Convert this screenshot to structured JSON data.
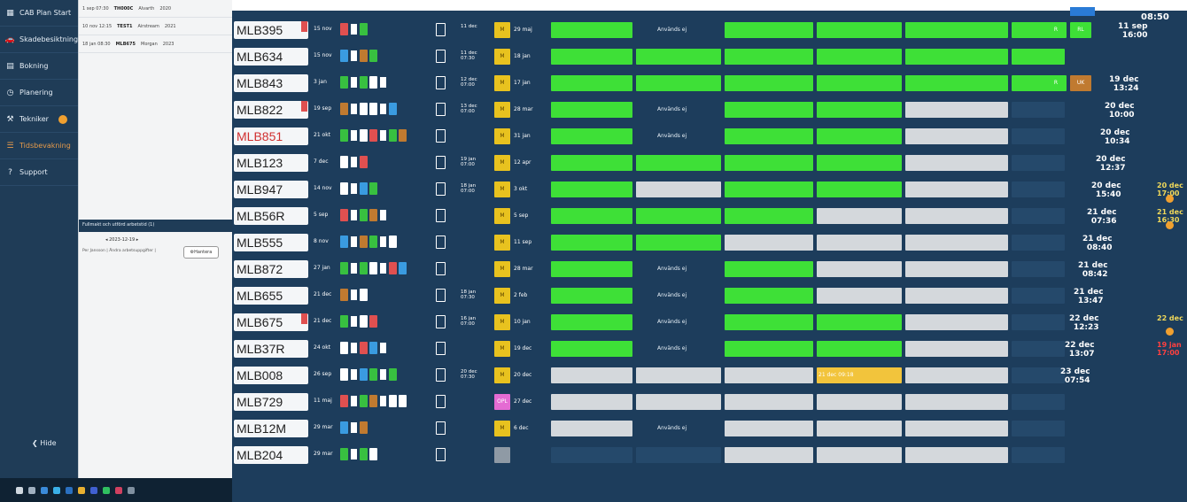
{
  "sidebar": {
    "items": [
      {
        "label": "CAB Plan Start",
        "icon": "grid-icon"
      },
      {
        "label": "Skadebesiktning",
        "icon": "car-icon"
      },
      {
        "label": "Bokning",
        "icon": "booking-icon"
      },
      {
        "label": "Planering",
        "icon": "clock-icon"
      },
      {
        "label": "Tekniker",
        "icon": "wrench-icon"
      },
      {
        "label": "Tidsbevakning",
        "icon": "list-icon"
      },
      {
        "label": "Support",
        "icon": "help-icon"
      }
    ],
    "hide_label": "Hide"
  },
  "middle_panel": {
    "entries": [
      {
        "time": "1 sep 07:30",
        "plate": "TH000C",
        "name": "Alvarth",
        "year": "2020"
      },
      {
        "time": "10 nov 12:15",
        "plate": "TEST1",
        "name": "Airstream",
        "year": "2021"
      },
      {
        "time": "18 jan 08:30",
        "plate": "MLB675",
        "name": "Morgan",
        "year": "2023"
      }
    ],
    "sub_header": "Fullmakt och utförd arbetstid (1)",
    "date_nav": "2023-12-19",
    "note": "Per Jansson | Ändra arbetsuppgifter |",
    "hantera_label": "Hantera"
  },
  "board": {
    "empty_label": "Används ej",
    "top_time": "08:50",
    "rows": [
      {
        "plate": "MLB395",
        "date": "15 nov",
        "appt": "11 dec",
        "m": "M",
        "next": "29 maj",
        "end": "11 sep\n16:00"
      },
      {
        "plate": "MLB634",
        "date": "15 nov",
        "appt": "11 dec\n07:30",
        "m": "M",
        "next": "18 jan",
        "end": ""
      },
      {
        "plate": "MLB843",
        "date": "3 jan",
        "appt": "12 dec\n07:00",
        "m": "M",
        "next": "17 jan",
        "end": "19 dec\n13:24"
      },
      {
        "plate": "MLB822",
        "date": "19 sep",
        "appt": "13 dec\n07:00",
        "m": "M",
        "next": "28 mar",
        "end": "20 dec\n10:00"
      },
      {
        "plate": "MLB851",
        "date": "21 okt",
        "appt": "",
        "m": "M",
        "next": "31 jan",
        "end": "20 dec\n10:34"
      },
      {
        "plate": "MLB123",
        "date": "7 dec",
        "appt": "19 jan\n07:00",
        "m": "M",
        "next": "12 apr",
        "end": "20 dec\n12:37"
      },
      {
        "plate": "MLB947",
        "date": "14 nov",
        "appt": "18 jan\n07:00",
        "m": "M",
        "next": "3 okt",
        "end": "20 dec\n15:40"
      },
      {
        "plate": "MLB56R",
        "date": "5 sep",
        "appt": "",
        "m": "M",
        "next": "5 sep",
        "end": "21 dec\n07:36"
      },
      {
        "plate": "MLB555",
        "date": "8 nov",
        "appt": "",
        "m": "M",
        "next": "11 sep",
        "end": "21 dec\n08:40"
      },
      {
        "plate": "MLB872",
        "date": "27 jan",
        "appt": "",
        "m": "M",
        "next": "28 mar",
        "end": "21 dec\n08:42"
      },
      {
        "plate": "MLB655",
        "date": "21 dec",
        "appt": "18 jan\n07:30",
        "m": "M",
        "next": "2 feb",
        "end": "21 dec\n13:47"
      },
      {
        "plate": "MLB675",
        "date": "21 dec",
        "appt": "16 jan\n07:00",
        "m": "M",
        "next": "10 jan",
        "end": "22 dec\n12:23"
      },
      {
        "plate": "MLB37R",
        "date": "24 okt",
        "appt": "",
        "m": "M",
        "next": "19 dec",
        "end": "22 dec\n13:07"
      },
      {
        "plate": "MLB008",
        "date": "26 sep",
        "appt": "20 dec\n07:30",
        "m": "M",
        "next": "20 dec",
        "end": "23 dec\n07:54"
      },
      {
        "plate": "MLB729",
        "date": "11 maj",
        "appt": "",
        "m": "OPL",
        "next": "27 dec",
        "end": ""
      },
      {
        "plate": "MLB12M",
        "date": "29 mar",
        "appt": "",
        "m": "M",
        "next": "6 dec",
        "end": ""
      },
      {
        "plate": "MLB204",
        "date": "29 mar",
        "appt": "",
        "m": "",
        "next": "",
        "end": ""
      }
    ],
    "yellow_label": "21 dec 09:18",
    "side_dates": [
      "21 dec\n16:30",
      "20 dec\n17:00",
      "22 dec",
      "19 jan\n17:00"
    ]
  },
  "colors": {
    "board_bg": "#1d3d5c",
    "green": "#3ee037",
    "gray": "#d4d8dc",
    "yellow": "#f2c43c",
    "sidebar": "#1f3c57"
  }
}
